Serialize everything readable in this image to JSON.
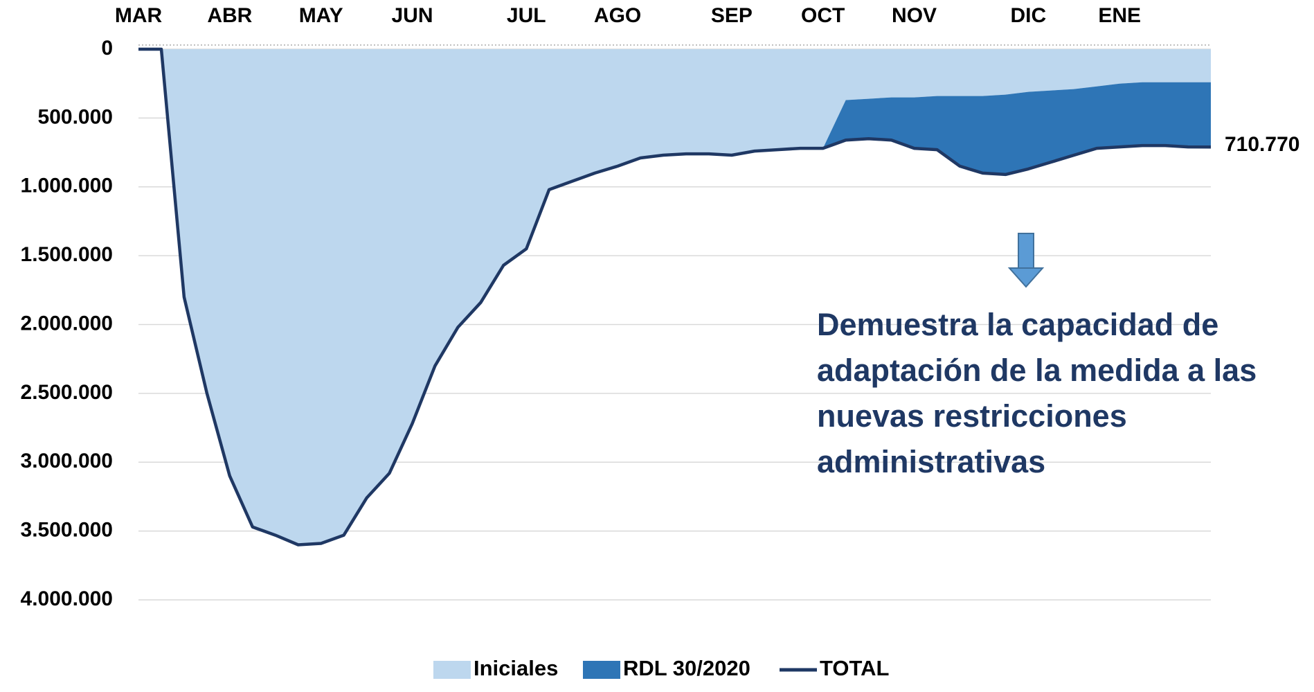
{
  "chart_data": {
    "type": "area",
    "categories": [
      "MAR",
      null,
      null,
      null,
      "ABR",
      null,
      null,
      null,
      "MAY",
      null,
      null,
      null,
      "JUN",
      null,
      null,
      null,
      null,
      "JUL",
      null,
      null,
      null,
      "AGO",
      null,
      null,
      null,
      null,
      "SEP",
      null,
      null,
      null,
      "OCT",
      null,
      null,
      null,
      "NOV",
      null,
      null,
      null,
      null,
      "DIC",
      null,
      null,
      null,
      "ENE",
      null,
      null,
      null,
      null
    ],
    "series": [
      {
        "name": "Iniciales",
        "color": "#bdd7ee",
        "values": [
          0,
          0,
          1800000,
          2500000,
          3100000,
          3470000,
          3530000,
          3600000,
          3590000,
          3530000,
          3260000,
          3080000,
          2720000,
          2300000,
          2020000,
          1840000,
          1570000,
          1450000,
          1020000,
          960000,
          900000,
          850000,
          790000,
          770000,
          760000,
          760000,
          770000,
          740000,
          730000,
          720000,
          720000,
          370000,
          360000,
          350000,
          350000,
          340000,
          340000,
          340000,
          330000,
          310000,
          300000,
          290000,
          270000,
          250000,
          240000,
          240000,
          240000,
          240000
        ]
      },
      {
        "name": "RDL 30/2020",
        "color": "#2e75b6",
        "values": [
          0,
          0,
          0,
          0,
          0,
          0,
          0,
          0,
          0,
          0,
          0,
          0,
          0,
          0,
          0,
          0,
          0,
          0,
          0,
          0,
          0,
          0,
          0,
          0,
          0,
          0,
          0,
          0,
          0,
          0,
          0,
          290000,
          290000,
          310000,
          370000,
          390000,
          510000,
          560000,
          580000,
          560000,
          520000,
          480000,
          450000,
          460000,
          460000,
          460000,
          470000,
          470770
        ]
      },
      {
        "name": "TOTAL",
        "color": "#1f3864",
        "type": "line",
        "values": [
          0,
          0,
          1800000,
          2500000,
          3100000,
          3470000,
          3530000,
          3600000,
          3590000,
          3530000,
          3260000,
          3080000,
          2720000,
          2300000,
          2020000,
          1840000,
          1570000,
          1450000,
          1020000,
          960000,
          900000,
          850000,
          790000,
          770000,
          760000,
          760000,
          770000,
          740000,
          730000,
          720000,
          720000,
          660000,
          650000,
          660000,
          720000,
          730000,
          850000,
          900000,
          910000,
          870000,
          820000,
          770000,
          720000,
          710000,
          700000,
          700000,
          710000,
          710770
        ],
        "value_labels": [
          null,
          null,
          null,
          null,
          null,
          null,
          null,
          null,
          null,
          null,
          null,
          null,
          null,
          null,
          null,
          null,
          null,
          null,
          null,
          null,
          null,
          null,
          null,
          null,
          null,
          null,
          null,
          null,
          null,
          null,
          null,
          null,
          null,
          null,
          null,
          null,
          null,
          null,
          null,
          null,
          null,
          null,
          null,
          null,
          null,
          null,
          null,
          "710.770"
        ]
      }
    ],
    "ylim": [
      0,
      4000000
    ],
    "y_inverted": true,
    "yticks": [
      0,
      {
        "value": 500000,
        "label": "500.000"
      },
      {
        "value": 1000000,
        "label": "1.000.000"
      },
      {
        "value": 1500000,
        "label": "1.500.000"
      },
      {
        "value": 2000000,
        "label": "2.000.000"
      },
      {
        "value": 2500000,
        "label": "2.500.000"
      },
      {
        "value": 3000000,
        "label": "3.000.000"
      },
      {
        "value": 3500000,
        "label": "3.500.000"
      },
      {
        "value": 4000000,
        "label": "4.000.000"
      }
    ],
    "grid": true,
    "legend": "bottom",
    "annotation": [
      "Demuestra la capacidad de",
      "adaptación de la medida a las",
      "nuevas restricciones",
      "administrativas"
    ]
  }
}
